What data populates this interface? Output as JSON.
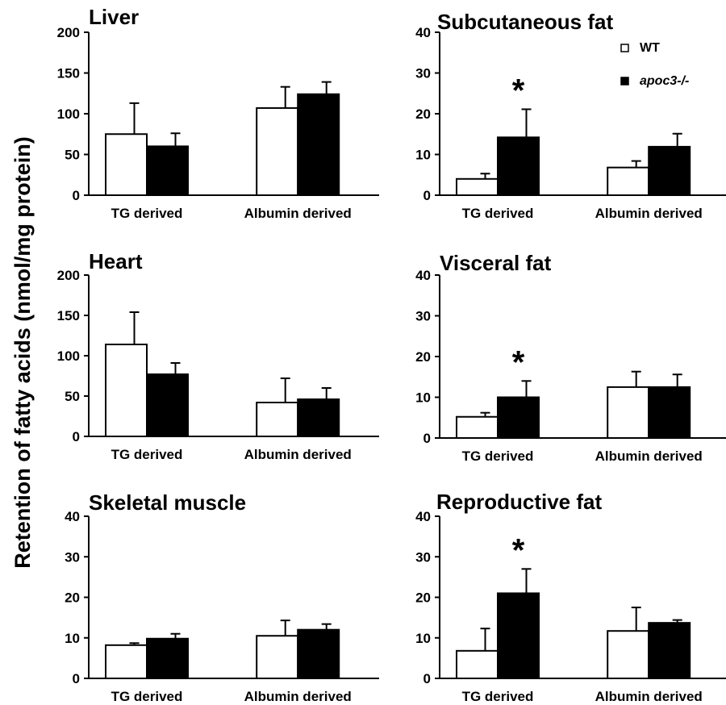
{
  "ylabel": "Retention of fatty acids (nmol/mg protein)",
  "legend": {
    "items": [
      {
        "label": "WT",
        "style": "open"
      },
      {
        "label": "apoc3-/-",
        "style": "filled"
      }
    ]
  },
  "colors": {
    "wt_fill": "#ffffff",
    "ko_fill": "#000000",
    "stroke": "#000000"
  },
  "chart_data": [
    {
      "type": "bar",
      "title": "Liver",
      "categories": [
        "TG derived",
        "Albumin derived"
      ],
      "ylim": [
        0,
        200
      ],
      "yticks": [
        0,
        50,
        100,
        150,
        200
      ],
      "series": [
        {
          "name": "WT",
          "values": [
            75,
            107
          ],
          "errors": [
            38,
            26
          ]
        },
        {
          "name": "apoc3-/-",
          "values": [
            60,
            124
          ],
          "errors": [
            16,
            15
          ]
        }
      ],
      "annotations": []
    },
    {
      "type": "bar",
      "title": "Subcutaneous fat",
      "categories": [
        "TG derived",
        "Albumin derived"
      ],
      "ylim": [
        0,
        40
      ],
      "yticks": [
        0,
        10,
        20,
        30,
        40
      ],
      "series": [
        {
          "name": "WT",
          "values": [
            4,
            6.8
          ],
          "errors": [
            1.3,
            1.6
          ]
        },
        {
          "name": "apoc3-/-",
          "values": [
            14.2,
            11.9
          ],
          "errors": [
            6.9,
            3.2
          ]
        }
      ],
      "annotations": [
        {
          "text": "*",
          "category": "TG derived"
        }
      ]
    },
    {
      "type": "bar",
      "title": "Heart",
      "categories": [
        "TG derived",
        "Albumin derived"
      ],
      "ylim": [
        0,
        200
      ],
      "yticks": [
        0,
        50,
        100,
        150,
        200
      ],
      "series": [
        {
          "name": "WT",
          "values": [
            114,
            42
          ],
          "errors": [
            40,
            30
          ]
        },
        {
          "name": "apoc3-/-",
          "values": [
            77,
            46
          ],
          "errors": [
            14,
            14
          ]
        }
      ],
      "annotations": []
    },
    {
      "type": "bar",
      "title": "Visceral fat",
      "categories": [
        "TG derived",
        "Albumin derived"
      ],
      "ylim": [
        0,
        40
      ],
      "yticks": [
        0,
        10,
        20,
        30,
        40
      ],
      "series": [
        {
          "name": "WT",
          "values": [
            5.2,
            12.5
          ],
          "errors": [
            1,
            3.8
          ]
        },
        {
          "name": "apoc3-/-",
          "values": [
            10,
            12.5
          ],
          "errors": [
            4,
            3.1
          ]
        }
      ],
      "annotations": [
        {
          "text": "*",
          "category": "TG derived"
        }
      ]
    },
    {
      "type": "bar",
      "title": "Skeletal muscle",
      "categories": [
        "TG derived",
        "Albumin derived"
      ],
      "ylim": [
        0,
        40
      ],
      "yticks": [
        0,
        10,
        20,
        30,
        40
      ],
      "series": [
        {
          "name": "WT",
          "values": [
            8.2,
            10.5
          ],
          "errors": [
            0.5,
            3.8
          ]
        },
        {
          "name": "apoc3-/-",
          "values": [
            9.8,
            12
          ],
          "errors": [
            1.2,
            1.4
          ]
        }
      ],
      "annotations": []
    },
    {
      "type": "bar",
      "title": "Reproductive fat",
      "categories": [
        "TG derived",
        "Albumin derived"
      ],
      "ylim": [
        0,
        40
      ],
      "yticks": [
        0,
        10,
        20,
        30,
        40
      ],
      "series": [
        {
          "name": "WT",
          "values": [
            6.8,
            11.7
          ],
          "errors": [
            5.5,
            5.8
          ]
        },
        {
          "name": "apoc3-/-",
          "values": [
            21,
            13.7
          ],
          "errors": [
            6,
            0.7
          ]
        }
      ],
      "annotations": [
        {
          "text": "*",
          "category": "TG derived"
        }
      ]
    }
  ]
}
